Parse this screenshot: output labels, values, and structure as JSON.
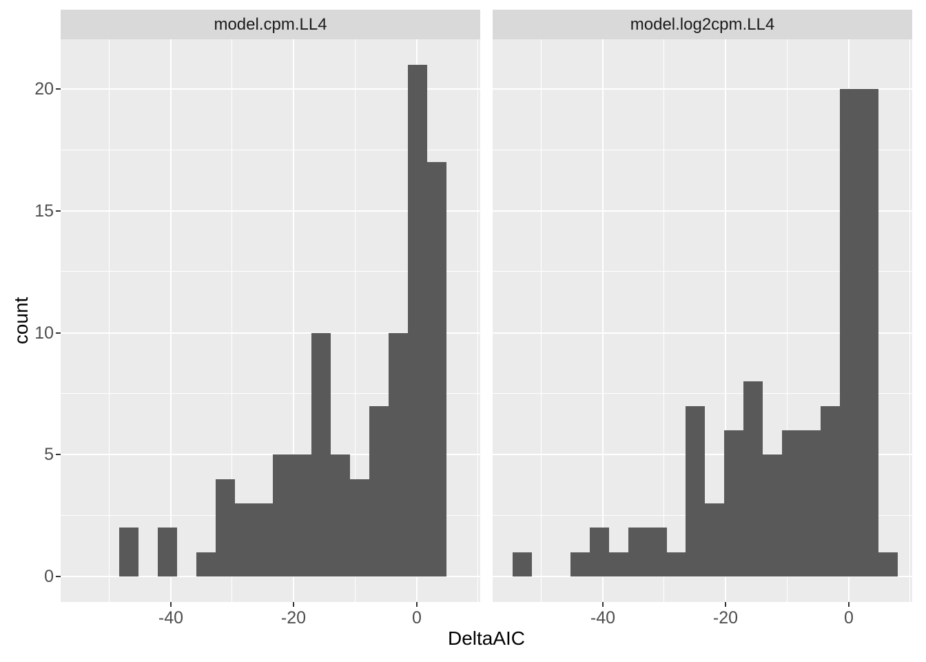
{
  "chart_data": {
    "type": "bar",
    "subtype": "faceted-histogram",
    "xlabel": "DeltaAIC",
    "ylabel": "count",
    "bin_width": 3.13,
    "x_domain": [
      -57.9,
      10.3
    ],
    "y_domain": [
      -1.05,
      22.05
    ],
    "grid": true,
    "legend_position": "none",
    "x_ticks_major": [
      {
        "value": -40,
        "label": "-40"
      },
      {
        "value": -20,
        "label": "-20"
      },
      {
        "value": 0,
        "label": "0"
      }
    ],
    "x_ticks_minor": [
      -50,
      -30,
      -10,
      10
    ],
    "y_ticks_major": [
      {
        "value": 0,
        "label": "0"
      },
      {
        "value": 5,
        "label": "5"
      },
      {
        "value": 10,
        "label": "10"
      },
      {
        "value": 15,
        "label": "15"
      },
      {
        "value": 20,
        "label": "20"
      }
    ],
    "y_ticks_minor": [
      2.5,
      7.5,
      12.5,
      17.5
    ],
    "facets": [
      {
        "label": "model.cpm.LL4",
        "bin_start": -48.4,
        "counts": [
          2,
          0,
          2,
          0,
          1,
          4,
          3,
          3,
          5,
          5,
          10,
          5,
          4,
          7,
          10,
          21,
          17
        ]
      },
      {
        "label": "model.log2cpm.LL4",
        "bin_start": -54.66,
        "counts": [
          1,
          0,
          0,
          1,
          2,
          1,
          2,
          2,
          1,
          7,
          3,
          6,
          8,
          5,
          6,
          6,
          7,
          20,
          20,
          1
        ]
      }
    ],
    "colors": {
      "bar": "#595959",
      "panel_bg": "#EBEBEB",
      "grid": "#FFFFFF",
      "strip_bg": "#D9D9D9",
      "strip_text": "#1A1A1A",
      "axis_text": "#4D4D4D",
      "axis_title": "#000000",
      "tick_mark": "#333333",
      "background": "#FFFFFF"
    }
  }
}
